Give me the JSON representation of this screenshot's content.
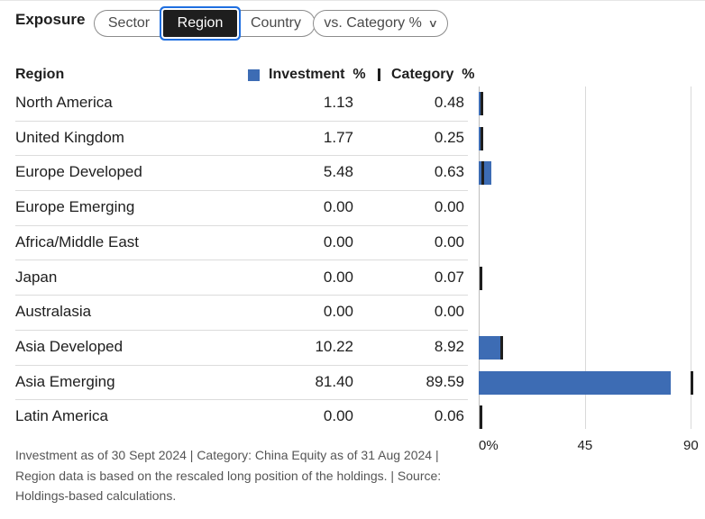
{
  "header": {
    "title": "Exposure",
    "tabs": [
      {
        "label": "Sector",
        "active": false
      },
      {
        "label": "Region",
        "active": true
      },
      {
        "label": "Country",
        "active": false
      }
    ],
    "compare_dropdown": {
      "label": "vs. Category %",
      "icon": "chevron-down-icon"
    }
  },
  "table": {
    "col_region": "Region",
    "col_investment": "Investment  %",
    "col_category": "Category  %",
    "rows": [
      {
        "region": "North America",
        "investment": "1.13",
        "category": "0.48"
      },
      {
        "region": "United Kingdom",
        "investment": "1.77",
        "category": "0.25"
      },
      {
        "region": "Europe Developed",
        "investment": "5.48",
        "category": "0.63"
      },
      {
        "region": "Europe Emerging",
        "investment": "0.00",
        "category": "0.00"
      },
      {
        "region": "Africa/Middle East",
        "investment": "0.00",
        "category": "0.00"
      },
      {
        "region": "Japan",
        "investment": "0.00",
        "category": "0.07"
      },
      {
        "region": "Australasia",
        "investment": "0.00",
        "category": "0.00"
      },
      {
        "region": "Asia Developed",
        "investment": "10.22",
        "category": "8.92"
      },
      {
        "region": "Asia Emerging",
        "investment": "81.40",
        "category": "89.59"
      },
      {
        "region": "Latin America",
        "investment": "0.00",
        "category": "0.06"
      }
    ]
  },
  "chart_data": {
    "type": "bar",
    "orientation": "horizontal",
    "categories": [
      "North America",
      "United Kingdom",
      "Europe Developed",
      "Europe Emerging",
      "Africa/Middle East",
      "Japan",
      "Australasia",
      "Asia Developed",
      "Asia Emerging",
      "Latin America"
    ],
    "series": [
      {
        "name": "Investment %",
        "values": [
          1.13,
          1.77,
          5.48,
          0.0,
          0.0,
          0.0,
          0.0,
          10.22,
          81.4,
          0.0
        ]
      },
      {
        "name": "Category %",
        "values": [
          0.48,
          0.25,
          0.63,
          0.0,
          0.0,
          0.07,
          0.0,
          8.92,
          89.59,
          0.06
        ]
      }
    ],
    "xlim": [
      0,
      90
    ],
    "ticks": [
      "0%",
      "45",
      "90"
    ],
    "tick_values": [
      0,
      45,
      90
    ],
    "grid": true,
    "colors": {
      "investment": "#3d6cb4",
      "category": "#1e1e1e"
    }
  },
  "footnote": "Investment as of 30 Sept 2024 | Category: China Equity as of 31 Aug 2024 | Region data is based on the rescaled long position of the holdings. | Source: Holdings-based calculations."
}
